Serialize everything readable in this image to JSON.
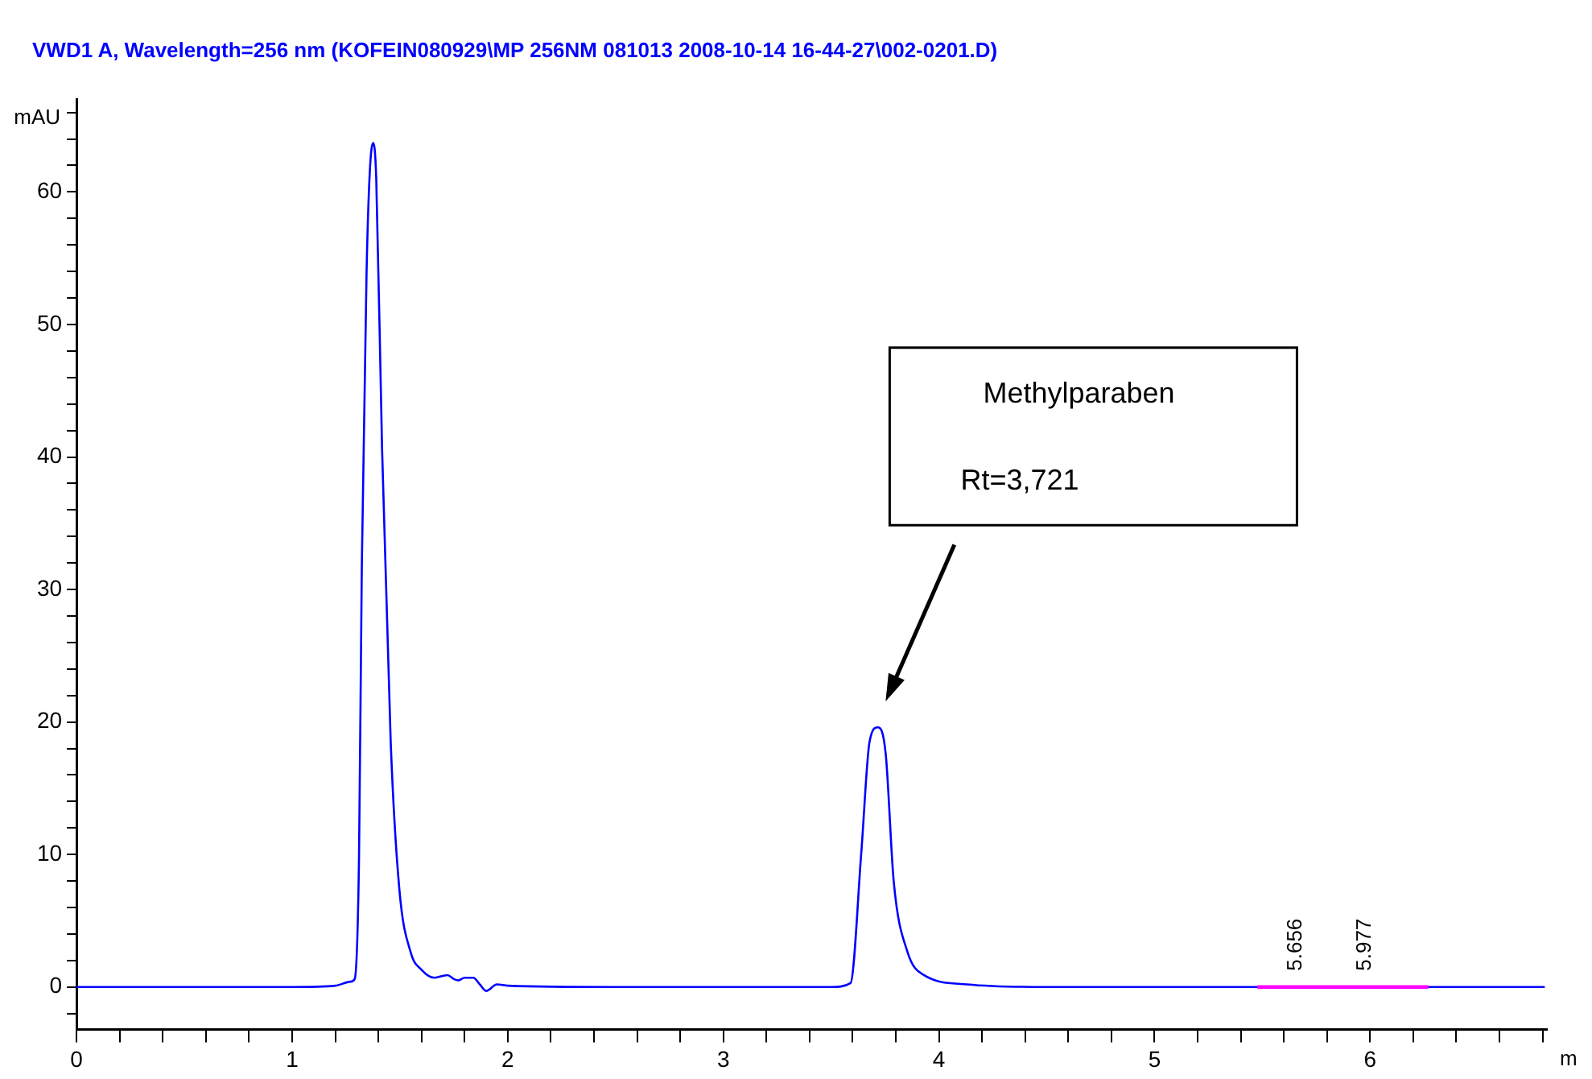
{
  "chart_data": {
    "type": "line",
    "title": "VWD1 A, Wavelength=256 nm (KOFEIN080929\\MP 256NM 081013 2008-10-14 16-44-27\\002-0201.D)",
    "xlabel": "m",
    "ylabel": "mAU",
    "series": [
      {
        "color": "#0000ff",
        "x": [
          0,
          0.5,
          1.0,
          1.2,
          1.27,
          1.29,
          1.31,
          1.323,
          1.345,
          1.36,
          1.376,
          1.39,
          1.417,
          1.457,
          1.497,
          1.55,
          1.6,
          1.66,
          1.72,
          1.75,
          1.77,
          1.8,
          1.84,
          1.87,
          1.9,
          1.95,
          2.0,
          2.5,
          3.0,
          3.5,
          3.59,
          3.64,
          3.678,
          3.716,
          3.753,
          3.79,
          3.853,
          3.93,
          4.13,
          4.5,
          5.0,
          5.5,
          6.0,
          6.5,
          6.81
        ],
        "values": [
          0,
          0,
          0,
          0.1,
          0.4,
          0.6,
          9.7,
          31.7,
          53.9,
          61.5,
          63.7,
          61,
          40.6,
          18.5,
          7.4,
          2.6,
          1.3,
          0.7,
          0.9,
          0.6,
          0.5,
          0.7,
          0.7,
          0.2,
          -0.3,
          0.2,
          0.1,
          0,
          0,
          0,
          0.3,
          10.2,
          18.5,
          19.6,
          17.6,
          8,
          2.7,
          0.9,
          0.2,
          0,
          0,
          0,
          0,
          0,
          0
        ]
      },
      {
        "color": "#ff00ff",
        "x": [
          5.477,
          5.84,
          6.27
        ],
        "values": [
          0,
          0,
          0
        ]
      }
    ],
    "xlim": [
      0,
      6.82
    ],
    "ylim": [
      -3.2,
      67
    ],
    "xticks": [
      0,
      {
        "value": 0.2,
        "label": null
      },
      {
        "value": 0.4,
        "label": null
      },
      {
        "value": 0.6,
        "label": null
      },
      {
        "value": 0.8,
        "label": null
      },
      1,
      {
        "value": 1.2,
        "label": null
      },
      {
        "value": 1.4,
        "label": null
      },
      {
        "value": 1.6,
        "label": null
      },
      {
        "value": 1.8,
        "label": null
      },
      2,
      {
        "value": 2.2,
        "label": null
      },
      {
        "value": 2.4,
        "label": null
      },
      {
        "value": 2.6,
        "label": null
      },
      {
        "value": 2.8,
        "label": null
      },
      3,
      {
        "value": 3.2,
        "label": null
      },
      {
        "value": 3.4,
        "label": null
      },
      {
        "value": 3.6,
        "label": null
      },
      {
        "value": 3.8,
        "label": null
      },
      4,
      {
        "value": 4.2,
        "label": null
      },
      {
        "value": 4.4,
        "label": null
      },
      {
        "value": 4.6,
        "label": null
      },
      {
        "value": 4.8,
        "label": null
      },
      5,
      {
        "value": 5.2,
        "label": null
      },
      {
        "value": 5.4,
        "label": null
      },
      {
        "value": 5.6,
        "label": null
      },
      {
        "value": 5.8,
        "label": null
      },
      6,
      {
        "value": 6.2,
        "label": null
      },
      {
        "value": 6.4,
        "label": null
      },
      {
        "value": 6.6,
        "label": null
      },
      {
        "value": 6.8,
        "label": null
      }
    ],
    "yticks": [
      {
        "value": -2,
        "label": null
      },
      0,
      {
        "value": 2,
        "label": null
      },
      {
        "value": 4,
        "label": null
      },
      {
        "value": 6,
        "label": null
      },
      {
        "value": 8,
        "label": null
      },
      10,
      {
        "value": 12,
        "label": null
      },
      {
        "value": 14,
        "label": null
      },
      {
        "value": 16,
        "label": null
      },
      {
        "value": 18,
        "label": null
      },
      20,
      {
        "value": 22,
        "label": null
      },
      {
        "value": 24,
        "label": null
      },
      {
        "value": 26,
        "label": null
      },
      {
        "value": 28,
        "label": null
      },
      30,
      {
        "value": 32,
        "label": null
      },
      {
        "value": 34,
        "label": null
      },
      {
        "value": 36,
        "label": null
      },
      {
        "value": 38,
        "label": null
      },
      40,
      {
        "value": 42,
        "label": null
      },
      {
        "value": 44,
        "label": null
      },
      {
        "value": 46,
        "label": null
      },
      {
        "value": 48,
        "label": null
      },
      50,
      {
        "value": 52,
        "label": null
      },
      {
        "value": 54,
        "label": null
      },
      {
        "value": 56,
        "label": null
      },
      {
        "value": 58,
        "label": null
      },
      60,
      {
        "value": 62,
        "label": null
      },
      {
        "value": 64,
        "label": null
      },
      {
        "value": 66,
        "label": null
      }
    ],
    "grid": false,
    "legend": false,
    "marker": "none",
    "line_style": "solid",
    "annotations": [
      "Methylparaben",
      "Rt=3,721",
      {
        "text": "5.656",
        "x": 5.656,
        "y": 0
      },
      {
        "text": "5.977",
        "x": 5.977,
        "y": 0
      }
    ]
  }
}
